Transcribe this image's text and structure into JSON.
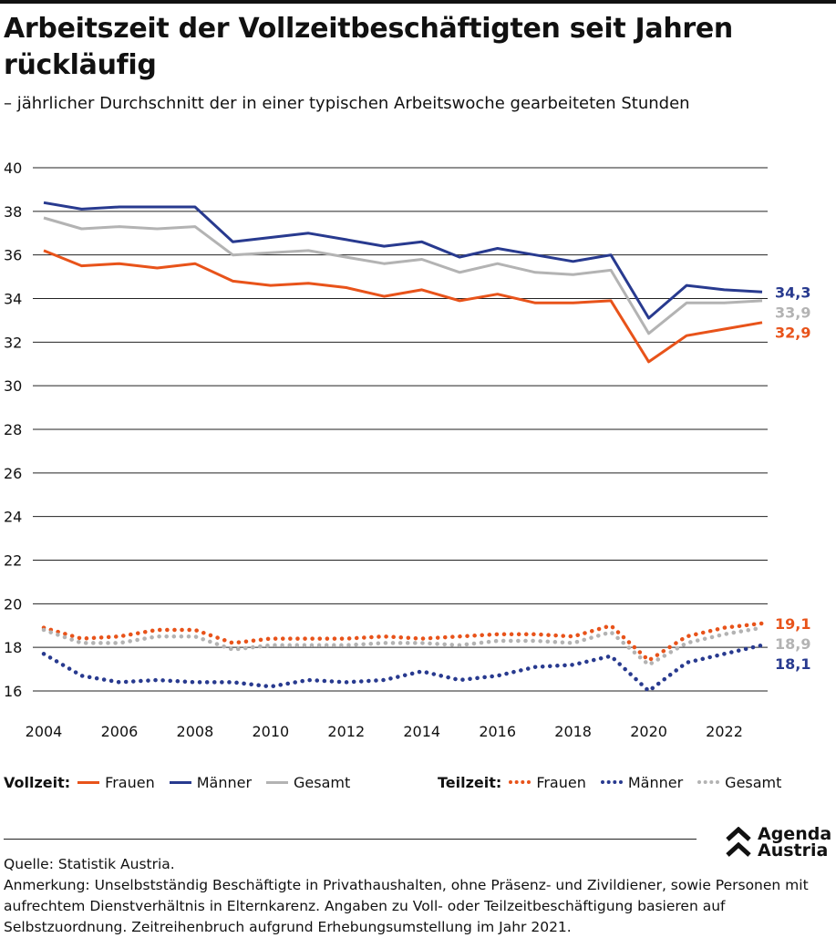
{
  "title": "Arbeitszeit der Vollzeitbeschäftigten seit Jahren rückläufig",
  "subtitle": "– jährlicher Durchschnitt der in einer typischen Arbeitswoche gearbeiteten Stunden",
  "colors": {
    "frauen": "#e8531a",
    "maenner": "#283a8f",
    "gesamt": "#b3b3b3",
    "grid": "#222222"
  },
  "legend": {
    "vollzeit_label": "Vollzeit:",
    "teilzeit_label": "Teilzeit:",
    "frauen": "Frauen",
    "maenner": "Männer",
    "gesamt": "Gesamt"
  },
  "chart_data": {
    "type": "line",
    "xlabel": "",
    "ylabel": "",
    "ylim": [
      16,
      40
    ],
    "yticks": [
      16,
      18,
      20,
      22,
      24,
      26,
      28,
      30,
      32,
      34,
      36,
      38,
      40
    ],
    "xticks": [
      2004,
      2006,
      2008,
      2010,
      2012,
      2014,
      2016,
      2018,
      2020,
      2022
    ],
    "x": [
      2004,
      2005,
      2006,
      2007,
      2008,
      2009,
      2010,
      2011,
      2012,
      2013,
      2014,
      2015,
      2016,
      2017,
      2018,
      2019,
      2020,
      2021,
      2022,
      2023
    ],
    "grid": "horizontal",
    "series": [
      {
        "name": "Frauen",
        "group": "Vollzeit",
        "style": "solid",
        "color": "#e8531a",
        "values": [
          36.2,
          35.5,
          35.6,
          35.4,
          35.6,
          34.8,
          34.6,
          34.7,
          34.5,
          34.1,
          34.4,
          33.9,
          34.2,
          33.8,
          33.8,
          33.9,
          31.1,
          32.3,
          32.6,
          32.9
        ],
        "end_label": "32,9"
      },
      {
        "name": "Männer",
        "group": "Vollzeit",
        "style": "solid",
        "color": "#283a8f",
        "values": [
          38.4,
          38.1,
          38.2,
          38.2,
          38.2,
          36.6,
          36.8,
          37.0,
          36.7,
          36.4,
          36.6,
          35.9,
          36.3,
          36.0,
          35.7,
          36.0,
          33.1,
          34.6,
          34.4,
          34.3
        ],
        "end_label": "34,3"
      },
      {
        "name": "Gesamt",
        "group": "Vollzeit",
        "style": "solid",
        "color": "#b3b3b3",
        "values": [
          37.7,
          37.2,
          37.3,
          37.2,
          37.3,
          36.0,
          36.1,
          36.2,
          35.9,
          35.6,
          35.8,
          35.2,
          35.6,
          35.2,
          35.1,
          35.3,
          32.4,
          33.8,
          33.8,
          33.9
        ],
        "end_label": "33,9"
      },
      {
        "name": "Frauen",
        "group": "Teilzeit",
        "style": "dotted",
        "color": "#e8531a",
        "values": [
          18.9,
          18.4,
          18.5,
          18.8,
          18.8,
          18.2,
          18.4,
          18.4,
          18.4,
          18.5,
          18.4,
          18.5,
          18.6,
          18.6,
          18.5,
          19.0,
          17.4,
          18.5,
          18.9,
          19.1
        ],
        "end_label": "19,1"
      },
      {
        "name": "Männer",
        "group": "Teilzeit",
        "style": "dotted",
        "color": "#283a8f",
        "values": [
          17.7,
          16.7,
          16.4,
          16.5,
          16.4,
          16.4,
          16.2,
          16.5,
          16.4,
          16.5,
          16.9,
          16.5,
          16.7,
          17.1,
          17.2,
          17.6,
          16.0,
          17.3,
          17.7,
          18.1
        ],
        "end_label": "18,1"
      },
      {
        "name": "Gesamt",
        "group": "Teilzeit",
        "style": "dotted",
        "color": "#b3b3b3",
        "values": [
          18.8,
          18.2,
          18.2,
          18.5,
          18.5,
          17.9,
          18.1,
          18.1,
          18.1,
          18.2,
          18.2,
          18.1,
          18.3,
          18.3,
          18.2,
          18.7,
          17.2,
          18.2,
          18.6,
          18.9
        ],
        "end_label": "18,9"
      }
    ]
  },
  "brand": {
    "line1": "Agenda",
    "line2": "Austria"
  },
  "footer": {
    "source": "Quelle: Statistik Austria.",
    "note": "Anmerkung: Unselbstständig Beschäftigte in Privathaushalten, ohne Präsenz- und Zivildiener, sowie Personen mit aufrechtem Dienstverhältnis in Elternkarenz. Angaben zu Voll- oder Teilzeitbeschäftigung basieren auf Selbstzuordnung. Zeitreihenbruch aufgrund Erhebungsumstellung im Jahr 2021."
  }
}
